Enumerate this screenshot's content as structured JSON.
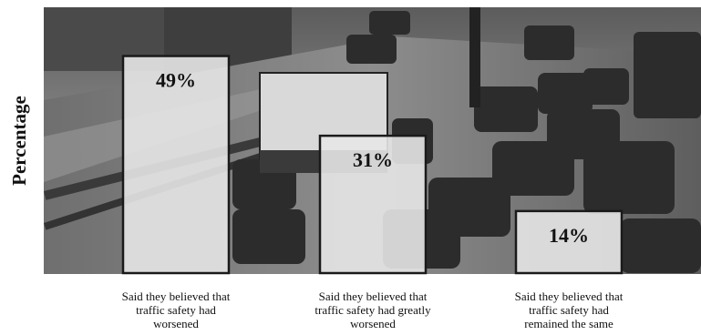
{
  "chart_data": {
    "type": "bar",
    "ylabel": "Percentage",
    "ylim": [
      0,
      60
    ],
    "categories": [
      [
        "Said they believed that",
        "traffic safety had",
        "worsened"
      ],
      [
        "Said they believed that",
        "traffic safety had greatly",
        "worsened"
      ],
      [
        "Said they believed that",
        "traffic safety had",
        "remained the same"
      ]
    ],
    "values": [
      49,
      31,
      14
    ],
    "value_labels": [
      "49%",
      "31%",
      "14%"
    ],
    "background": "grayscale photo of heavy highway traffic",
    "colors": {
      "bar_fill": "#e6e6e6",
      "bar_border": "#1a1a1a"
    }
  }
}
